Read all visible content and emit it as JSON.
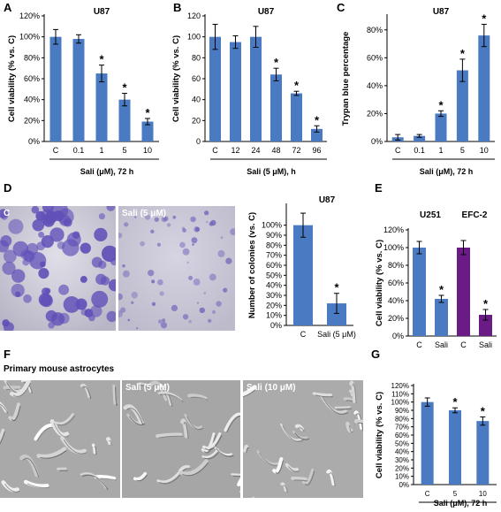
{
  "panel_labels": {
    "A": "A",
    "B": "B",
    "C": "C",
    "D": "D",
    "E": "E",
    "F": "F",
    "G": "G"
  },
  "photos": {
    "d_left": "C",
    "d_right": "Sali (5 μM)",
    "f_title": "Primary mouse astrocytes",
    "f_left": "",
    "f_mid": "Sali (5 μM)",
    "f_right": "Sali (10 μM)"
  },
  "colors": {
    "bar": "#4a7ac2",
    "bar_alt": "#6a1b86",
    "axis": "#000000"
  },
  "chart_data": [
    {
      "id": "A",
      "type": "bar",
      "title": "U87",
      "categories": [
        "C",
        "0.1",
        "1",
        "5",
        "10"
      ],
      "values": [
        100,
        98,
        65,
        40,
        19
      ],
      "errors": [
        7,
        4,
        8,
        6,
        3
      ],
      "significant": [
        false,
        false,
        true,
        true,
        true
      ],
      "ylabel": "Cell viability (% vs. C)",
      "xlabel": "Sali (μM), 72 h",
      "ylim": [
        0,
        120
      ],
      "yticks": [
        "0%",
        "20%",
        "40%",
        "60%",
        "80%",
        "100%",
        "120%"
      ]
    },
    {
      "id": "B",
      "type": "bar",
      "title": "U87",
      "categories": [
        "C",
        "12",
        "24",
        "48",
        "72",
        "96"
      ],
      "values": [
        100,
        95,
        100,
        64,
        46,
        12
      ],
      "errors": [
        12,
        6,
        10,
        6,
        2,
        3
      ],
      "significant": [
        false,
        false,
        false,
        true,
        true,
        true
      ],
      "ylabel": "Cell viability (% vs. C)",
      "xlabel": "Sali (5 μM), h",
      "ylim": [
        0,
        120
      ],
      "yticks": [
        "0",
        "20",
        "40",
        "60",
        "80",
        "100",
        "120"
      ]
    },
    {
      "id": "C",
      "type": "bar",
      "title": "U87",
      "categories": [
        "C",
        "0.1",
        "1",
        "5",
        "10"
      ],
      "values": [
        3,
        4,
        20,
        51,
        76
      ],
      "errors": [
        2,
        1,
        2,
        8,
        8
      ],
      "significant": [
        false,
        false,
        true,
        true,
        true
      ],
      "ylabel": "Trypan blue percentage",
      "xlabel": "Sali (μM), 72 h",
      "ylim": [
        0,
        90
      ],
      "yticks": [
        "0%",
        "20%",
        "40%",
        "60%",
        "80%"
      ]
    },
    {
      "id": "D",
      "type": "bar",
      "title": "U87",
      "categories": [
        "C",
        "Sali (5 μM)"
      ],
      "values": [
        100,
        22
      ],
      "errors": [
        12,
        10
      ],
      "significant": [
        false,
        true
      ],
      "ylabel": "Number of colonies (vs. C)",
      "xlabel": "",
      "ylim": [
        0,
        120
      ],
      "yticks": [
        "0%",
        "10%",
        "20%",
        "30%",
        "40%",
        "50%",
        "60%",
        "70%",
        "80%",
        "90%",
        "100%"
      ]
    },
    {
      "id": "E",
      "type": "bar",
      "groups": [
        "U251",
        "EFC-2"
      ],
      "categories": [
        "C",
        "Sali",
        "C",
        "Sali"
      ],
      "values": [
        100,
        42,
        100,
        24
      ],
      "errors": [
        7,
        4,
        8,
        6
      ],
      "significant": [
        false,
        true,
        false,
        true
      ],
      "bar_color_keys": [
        "bar",
        "bar",
        "bar_alt",
        "bar_alt"
      ],
      "ylabel": "Cell viability (% vs. C)",
      "xlabel": "",
      "ylim": [
        0,
        120
      ],
      "yticks": [
        "0%",
        "20%",
        "40%",
        "60%",
        "80%",
        "100%",
        "120%"
      ]
    },
    {
      "id": "G",
      "type": "bar",
      "categories": [
        "C",
        "5",
        "10"
      ],
      "values": [
        100,
        90,
        77
      ],
      "errors": [
        5,
        3,
        5
      ],
      "significant": [
        false,
        true,
        true
      ],
      "ylabel": "Cell viability (% vs. C)",
      "xlabel": "Sali (μM), 72 h",
      "ylim": [
        0,
        120
      ],
      "yticks": [
        "0%",
        "10%",
        "20%",
        "30%",
        "40%",
        "50%",
        "60%",
        "70%",
        "80%",
        "90%",
        "100%",
        "110%",
        "120%"
      ]
    }
  ]
}
